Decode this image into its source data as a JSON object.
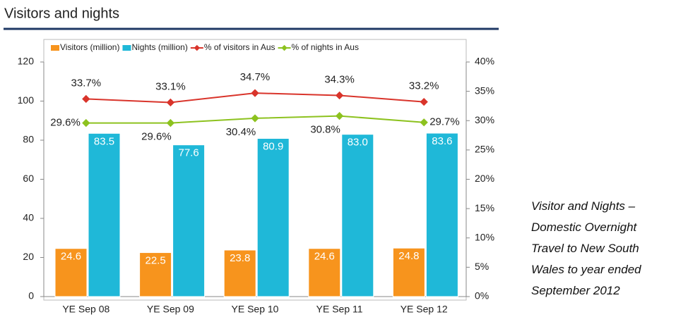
{
  "chart_data": {
    "type": "bar",
    "title": "Visitors and nights",
    "categories": [
      "YE Sep 08",
      "YE Sep 09",
      "YE Sep 10",
      "YE Sep 11",
      "YE Sep 12"
    ],
    "series": [
      {
        "name": "Visitors (million)",
        "type": "bar",
        "color": "#f7941d",
        "values": [
          24.6,
          22.5,
          23.8,
          24.6,
          24.8
        ]
      },
      {
        "name": "Nights (million)",
        "type": "bar",
        "color": "#1fb8d8",
        "values": [
          83.5,
          77.6,
          80.9,
          83,
          83.6
        ],
        "value_labels": [
          "83.5",
          "77.6",
          "80.9",
          "83.0",
          "83.6"
        ]
      },
      {
        "name": "% of visitors in Aus",
        "type": "line",
        "axis": "y2",
        "color": "#d9342b",
        "values": [
          33.7,
          33.1,
          34.7,
          34.3,
          33.2
        ],
        "value_labels": [
          "33.7%",
          "33.1%",
          "34.7%",
          "34.3%",
          "33.2%"
        ]
      },
      {
        "name": "% of nights in Aus",
        "type": "line",
        "axis": "y2",
        "color": "#8dc21f",
        "values": [
          29.6,
          29.6,
          30.4,
          30.8,
          29.7
        ],
        "value_labels": [
          "29.6%",
          "29.6%",
          "30.4%",
          "30.8%",
          "29.7%"
        ]
      }
    ],
    "ylim": [
      0,
      120
    ],
    "yticks": [
      0,
      20,
      40,
      60,
      80,
      100,
      120
    ],
    "y2lim": [
      0,
      40
    ],
    "y2ticks": [
      {
        "value": 0,
        "label": "0%"
      },
      {
        "value": 5,
        "label": "5%"
      },
      {
        "value": 10,
        "label": "10%"
      },
      {
        "value": 15,
        "label": "15%"
      },
      {
        "value": 20,
        "label": "20%"
      },
      {
        "value": 25,
        "label": "25%"
      },
      {
        "value": 30,
        "label": "30%"
      },
      {
        "value": 35,
        "label": "35%"
      },
      {
        "value": 40,
        "label": "40%"
      }
    ],
    "legend": "top"
  },
  "caption": "Visitor and Nights – Domestic Overnight Travel to New South Wales to year ended September 2012"
}
